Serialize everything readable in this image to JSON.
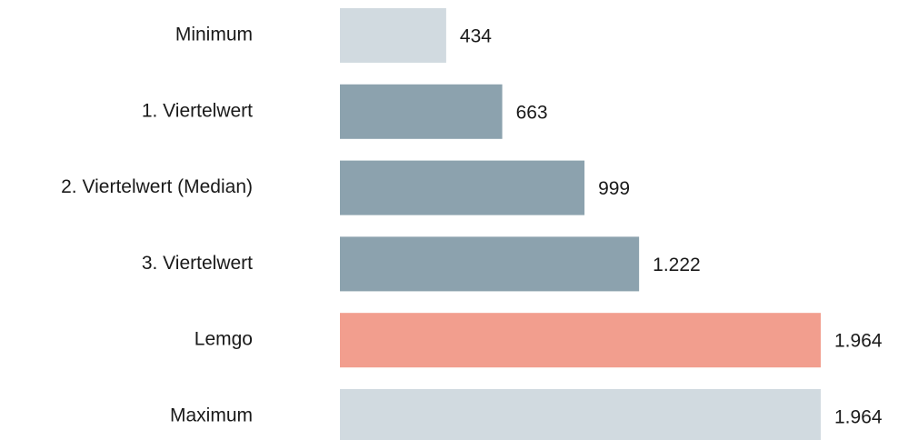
{
  "chart_data": {
    "type": "hbar",
    "categories": [
      "Minimum",
      "1. Viertelwert",
      "2. Viertelwert (Median)",
      "3. Viertelwert",
      "Lemgo",
      "Maximum"
    ],
    "values": [
      434,
      663,
      999,
      1222,
      1964,
      1964
    ],
    "value_labels": [
      "434",
      "663",
      "999",
      "1.222",
      "1.964",
      "1.964"
    ],
    "colors": [
      "#d1dae0",
      "#8ca2ae",
      "#8ca2ae",
      "#8ca2ae",
      "#f29e8e",
      "#d1dae0"
    ]
  }
}
